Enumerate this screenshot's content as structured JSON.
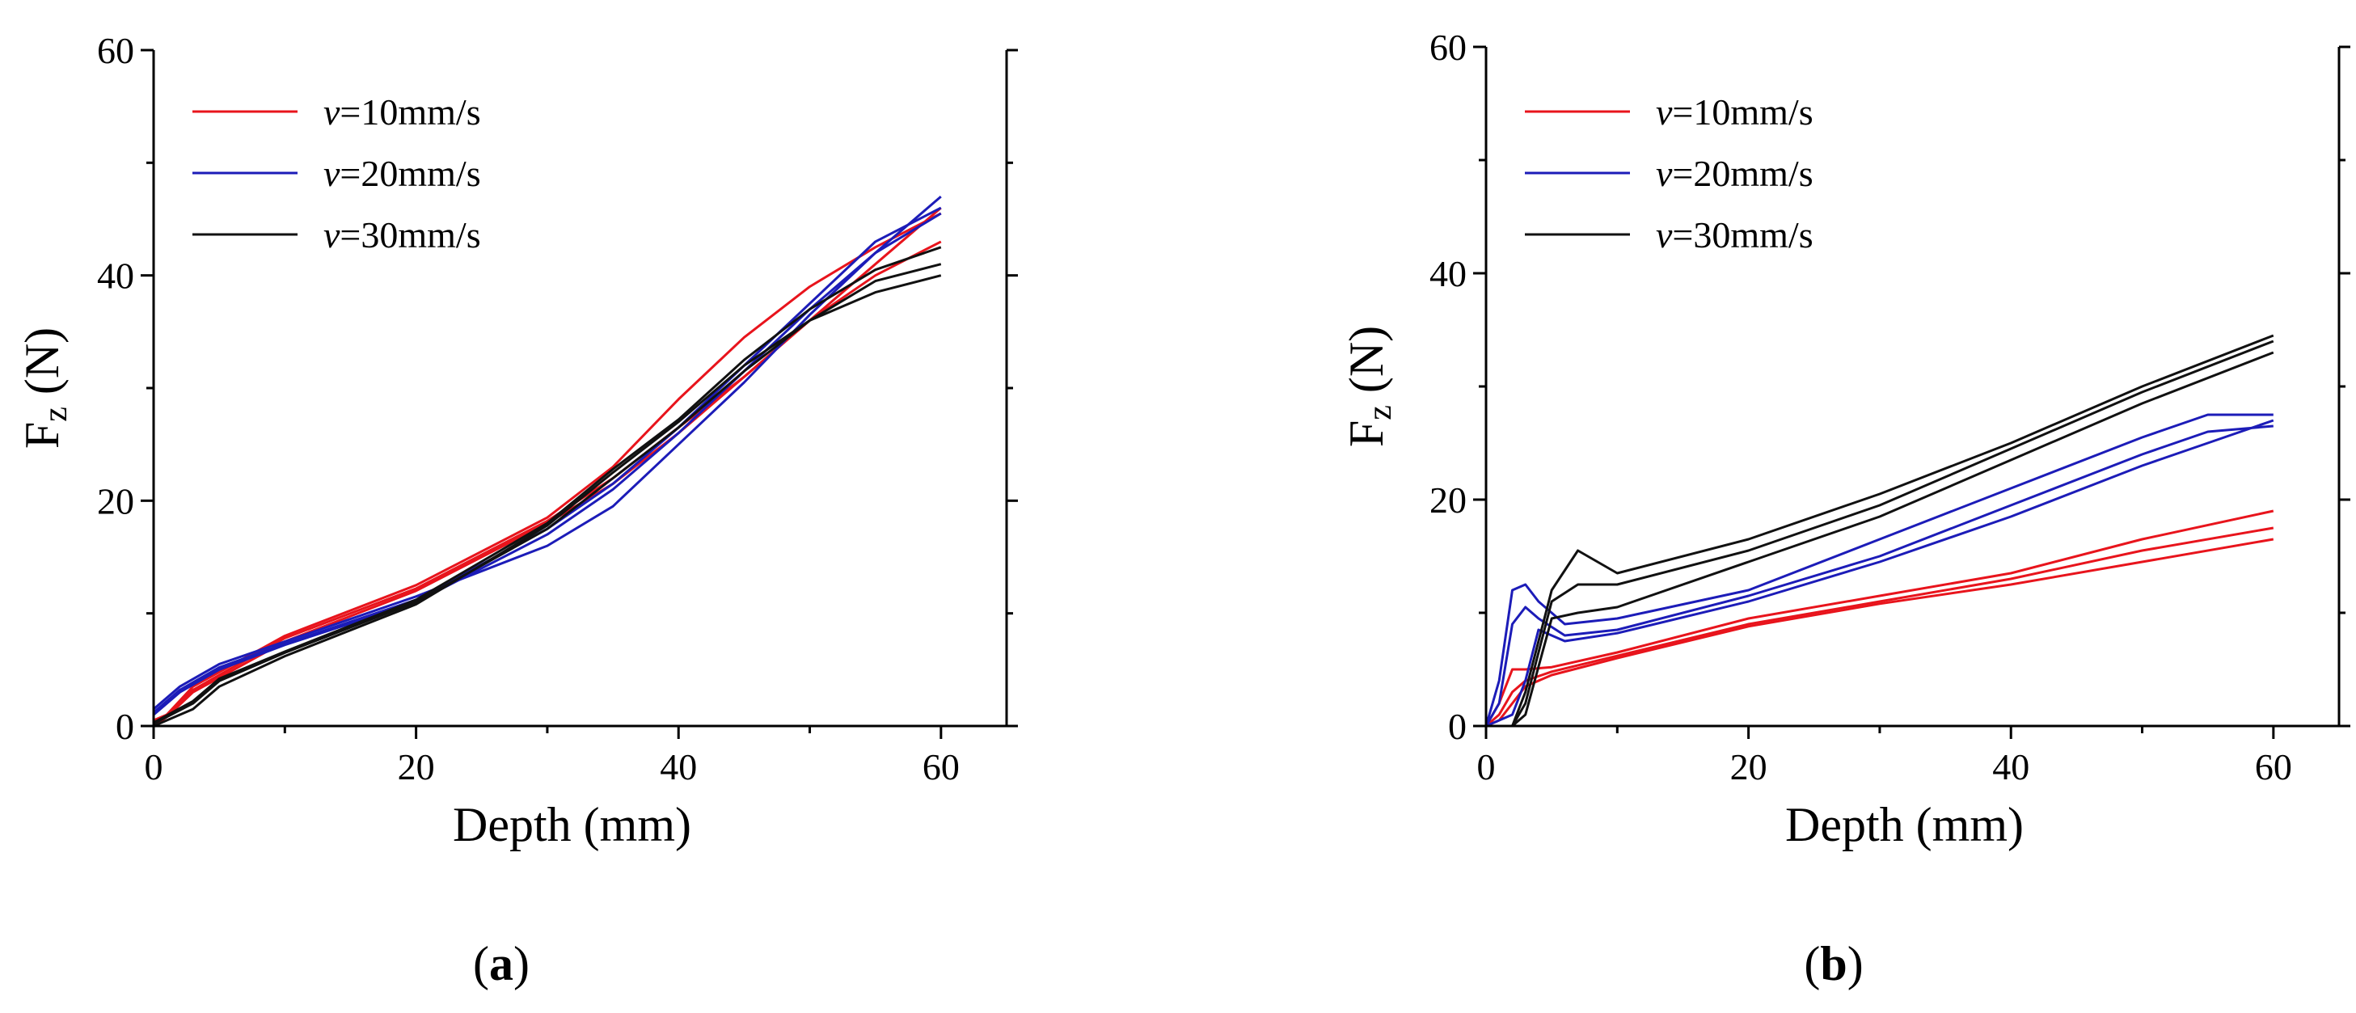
{
  "chart_data": [
    {
      "type": "line",
      "panel_label": "(a)",
      "xlabel": "Depth (mm)",
      "ylabel": "Fz (N)",
      "ylabel_main": "F",
      "ylabel_sub": "z",
      "ylabel_unit": " (N)",
      "xlim": [
        0,
        65
      ],
      "ylim": [
        0,
        60
      ],
      "xticks": [
        0,
        20,
        40,
        60
      ],
      "yticks": [
        0,
        20,
        40,
        60
      ],
      "legend_position": "top-left",
      "legend": [
        {
          "prefix": "v",
          "suffix": "=10mm/s",
          "color": "#e8141c"
        },
        {
          "prefix": "v",
          "suffix": "=20mm/s",
          "color": "#1c1cb8"
        },
        {
          "prefix": "v",
          "suffix": "=30mm/s",
          "color": "#111111"
        }
      ],
      "series": [
        {
          "name": "v=10mm/s run 1",
          "color": "#e8141c",
          "x": [
            0,
            1,
            3,
            10,
            20,
            30,
            35,
            40,
            45,
            50,
            55,
            60
          ],
          "y": [
            0.5,
            1,
            3.5,
            8,
            12.5,
            18.5,
            23,
            29,
            34.5,
            39,
            42.5,
            45.5
          ]
        },
        {
          "name": "v=10mm/s run 2",
          "color": "#e8141c",
          "x": [
            0,
            1,
            3,
            10,
            20,
            30,
            35,
            40,
            45,
            50,
            55,
            60
          ],
          "y": [
            0,
            0.8,
            3,
            7.5,
            12,
            18,
            21.5,
            26,
            31,
            36,
            41,
            46
          ]
        },
        {
          "name": "v=10mm/s run 3",
          "color": "#e8141c",
          "x": [
            0,
            1,
            3,
            10,
            20,
            30,
            35,
            40,
            45,
            50,
            55,
            60
          ],
          "y": [
            0.2,
            1,
            3.2,
            7.8,
            12.2,
            18.2,
            22,
            26.5,
            31,
            36,
            40,
            43
          ]
        },
        {
          "name": "v=20mm/s run 1",
          "color": "#1c1cb8",
          "x": [
            0,
            2,
            5,
            10,
            20,
            30,
            35,
            40,
            45,
            50,
            55,
            60
          ],
          "y": [
            1.5,
            3.5,
            5.5,
            7.5,
            11.5,
            16,
            19.5,
            25,
            30.5,
            36.5,
            42,
            47
          ]
        },
        {
          "name": "v=20mm/s run 2",
          "color": "#1c1cb8",
          "x": [
            0,
            2,
            5,
            10,
            20,
            30,
            35,
            40,
            45,
            50,
            55,
            60
          ],
          "y": [
            1,
            3,
            5,
            7.2,
            11,
            17,
            21,
            26,
            31.5,
            37,
            42,
            45.5
          ]
        },
        {
          "name": "v=20mm/s run 3",
          "color": "#1c1cb8",
          "x": [
            0,
            2,
            5,
            10,
            20,
            30,
            35,
            40,
            45,
            50,
            55,
            60
          ],
          "y": [
            1.2,
            3.2,
            5.2,
            7.3,
            11.2,
            17.5,
            21.5,
            26.5,
            32,
            37.5,
            43,
            46
          ]
        },
        {
          "name": "v=30mm/s run 1",
          "color": "#111111",
          "x": [
            0,
            3,
            5,
            10,
            20,
            30,
            35,
            40,
            45,
            50,
            55,
            60
          ],
          "y": [
            0.2,
            2,
            4,
            6.5,
            11,
            17.5,
            22,
            26.5,
            31.5,
            36,
            39.5,
            41
          ]
        },
        {
          "name": "v=30mm/s run 2",
          "color": "#111111",
          "x": [
            0,
            3,
            5,
            10,
            20,
            30,
            35,
            40,
            45,
            50,
            55,
            60
          ],
          "y": [
            0,
            1.5,
            3.5,
            6.2,
            10.8,
            17.8,
            22.5,
            27,
            32,
            36,
            38.5,
            40
          ]
        },
        {
          "name": "v=30mm/s run 3",
          "color": "#111111",
          "x": [
            0,
            3,
            5,
            10,
            20,
            30,
            35,
            40,
            45,
            50,
            55,
            60
          ],
          "y": [
            0.3,
            2.2,
            4.2,
            6.6,
            11.2,
            18,
            22.8,
            27.2,
            32.5,
            37,
            40.5,
            42.5
          ]
        }
      ]
    },
    {
      "type": "line",
      "panel_label": "(b)",
      "xlabel": "Depth (mm)",
      "ylabel": "Fz (N)",
      "ylabel_main": "F",
      "ylabel_sub": "z",
      "ylabel_unit": " (N)",
      "xlim": [
        0,
        65
      ],
      "ylim": [
        0,
        60
      ],
      "xticks": [
        0,
        20,
        40,
        60
      ],
      "yticks": [
        0,
        20,
        40,
        60
      ],
      "legend_position": "top-left",
      "legend": [
        {
          "prefix": "v",
          "suffix": "=10mm/s",
          "color": "#e8141c"
        },
        {
          "prefix": "v",
          "suffix": "=20mm/s",
          "color": "#1c1cb8"
        },
        {
          "prefix": "v",
          "suffix": "=30mm/s",
          "color": "#111111"
        }
      ],
      "series": [
        {
          "name": "v=10mm/s run 1",
          "color": "#e8141c",
          "x": [
            0,
            1,
            2,
            3,
            5,
            10,
            20,
            30,
            40,
            50,
            60
          ],
          "y": [
            0,
            2,
            5,
            5,
            5.2,
            6.5,
            9.5,
            11.5,
            13.5,
            16.5,
            19
          ]
        },
        {
          "name": "v=10mm/s run 2",
          "color": "#e8141c",
          "x": [
            0,
            1,
            2,
            3,
            5,
            10,
            20,
            30,
            40,
            50,
            60
          ],
          "y": [
            0,
            1,
            3,
            4,
            4.8,
            6.2,
            9,
            11,
            13,
            15.5,
            17.5
          ]
        },
        {
          "name": "v=10mm/s run 3",
          "color": "#e8141c",
          "x": [
            0,
            1,
            2,
            3,
            5,
            10,
            20,
            30,
            40,
            50,
            60
          ],
          "y": [
            0,
            0.5,
            2,
            3.5,
            4.5,
            6,
            8.8,
            10.8,
            12.5,
            14.5,
            16.5
          ]
        },
        {
          "name": "v=20mm/s run 1",
          "color": "#1c1cb8",
          "x": [
            0,
            1,
            2,
            3,
            4,
            6,
            10,
            20,
            30,
            40,
            50,
            55,
            60
          ],
          "y": [
            0,
            4,
            12,
            12.5,
            11,
            9,
            9.5,
            12,
            16.5,
            21,
            25.5,
            27.5,
            27.5
          ]
        },
        {
          "name": "v=20mm/s run 2",
          "color": "#1c1cb8",
          "x": [
            0,
            1,
            2,
            3,
            4,
            6,
            10,
            20,
            30,
            40,
            50,
            55,
            60
          ],
          "y": [
            0,
            2,
            9,
            10.5,
            9.5,
            8,
            8.5,
            11.5,
            15,
            19.5,
            24,
            26,
            26.5
          ]
        },
        {
          "name": "v=20mm/s run 3",
          "color": "#1c1cb8",
          "x": [
            0,
            1,
            2,
            3,
            4,
            6,
            10,
            20,
            30,
            40,
            50,
            55,
            60
          ],
          "y": [
            0,
            0.5,
            1,
            4,
            8.5,
            7.5,
            8.2,
            11,
            14.5,
            18.5,
            23,
            25,
            27
          ]
        },
        {
          "name": "v=30mm/s run 1",
          "color": "#111111",
          "x": [
            0,
            2,
            3,
            5,
            7,
            10,
            20,
            30,
            40,
            50,
            60
          ],
          "y": [
            0,
            0,
            3,
            12,
            15.5,
            13.5,
            16.5,
            20.5,
            25,
            30,
            34.5
          ]
        },
        {
          "name": "v=30mm/s run 2",
          "color": "#111111",
          "x": [
            0,
            2,
            3,
            5,
            7,
            10,
            20,
            30,
            40,
            50,
            60
          ],
          "y": [
            0,
            0,
            2,
            11,
            12.5,
            12.5,
            15.5,
            19.5,
            24.5,
            29.5,
            34
          ]
        },
        {
          "name": "v=30mm/s run 3",
          "color": "#111111",
          "x": [
            0,
            2,
            3,
            5,
            7,
            10,
            20,
            30,
            40,
            50,
            60
          ],
          "y": [
            0,
            0,
            1,
            9.5,
            10,
            10.5,
            14.5,
            18.5,
            23.5,
            28.5,
            33
          ]
        }
      ]
    }
  ]
}
